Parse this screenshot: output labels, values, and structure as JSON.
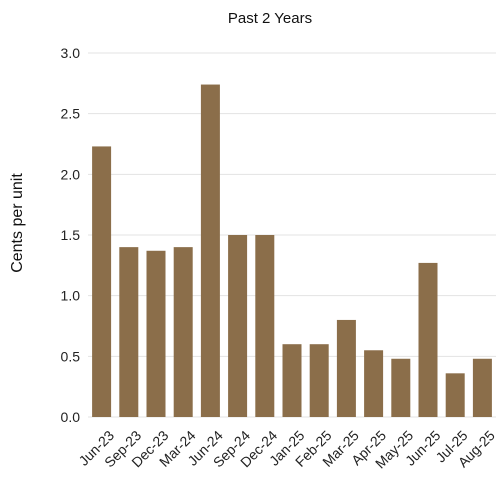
{
  "chart_data": {
    "type": "bar",
    "title": "Past 2 Years",
    "xlabel": "",
    "ylabel": "Cents per unit",
    "ylim": [
      0,
      3.0
    ],
    "yticks": [
      "0.0",
      "0.5",
      "1.0",
      "1.5",
      "2.0",
      "2.5",
      "3.0"
    ],
    "grid": true,
    "bar_color": "#8B6E4A",
    "grid_color": "#e3e3e3",
    "categories": [
      "Jun-23",
      "Sep-23",
      "Dec-23",
      "Mar-24",
      "Jun-24",
      "Sep-24",
      "Dec-24",
      "Jan-25",
      "Feb-25",
      "Mar-25",
      "Apr-25",
      "May-25",
      "Jun-25",
      "Jul-25",
      "Aug-25"
    ],
    "values": [
      2.23,
      1.4,
      1.37,
      1.4,
      2.74,
      1.5,
      1.5,
      0.6,
      0.6,
      0.8,
      0.55,
      0.48,
      1.27,
      0.36,
      0.48
    ]
  }
}
